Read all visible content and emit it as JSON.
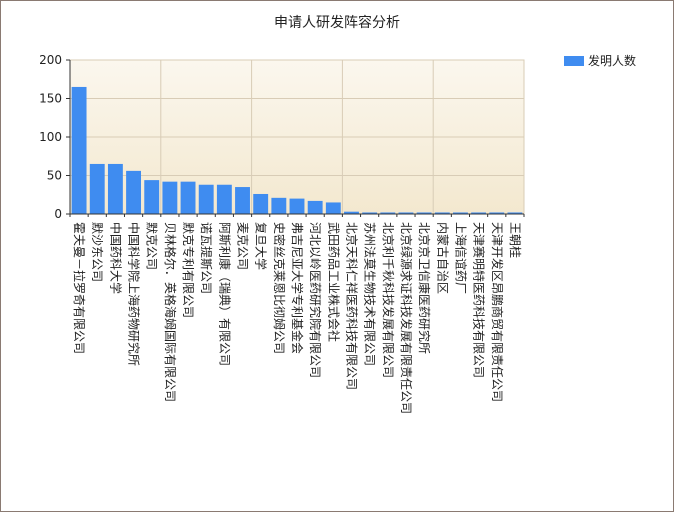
{
  "chart_data": {
    "type": "bar",
    "title": "申请人研发阵容分析",
    "xlabel": "",
    "ylabel": "",
    "ylim": [
      0,
      200
    ],
    "yticks": [
      0,
      50,
      100,
      150,
      200
    ],
    "grid": true,
    "legend_position": "top-right",
    "colors": {
      "bar": "#3f8cf0",
      "plot_bg_top": "#fbf7ee",
      "plot_bg_bottom": "#f3e8cf",
      "grid": "#d8ccb6"
    },
    "categories": [
      "霍夫曼－拉罗奇有限公司",
      "默沙东公司",
      "中国药科大学",
      "中国科学院上海药物研究所",
      "默克公司",
      "贝林格尔．英格海姆国际有限公司",
      "默克专利有限公司",
      "诺瓦提斯公司",
      "阿斯利康（瑞典）有限公司",
      "麦克公司",
      "复旦大学",
      "史密丝克莱恩比彻姆公司",
      "弗吉尼亚大学专利基金会",
      "河北以岭医药研究院有限公司",
      "武田药品工业株式会社",
      "北京天科仁祥医药科技有限公司",
      "苏州法莫生物技术有限公司",
      "北京利千秋科技发展有限公司",
      "北京绿源求证科技发展有限责任公司",
      "北京京卫信康医药研究所",
      "内蒙古自治区",
      "上海信谊药厂",
      "天津赛明特医药科技有限公司",
      "天津开发区昂鹏商贸有限责任公司",
      "王朝桂"
    ],
    "series": [
      {
        "name": "发明人数",
        "values": [
          165,
          65,
          65,
          56,
          44,
          42,
          42,
          38,
          38,
          35,
          26,
          21,
          20,
          17,
          15,
          3,
          2,
          2,
          2,
          2,
          2,
          2,
          2,
          2,
          2
        ]
      }
    ]
  }
}
